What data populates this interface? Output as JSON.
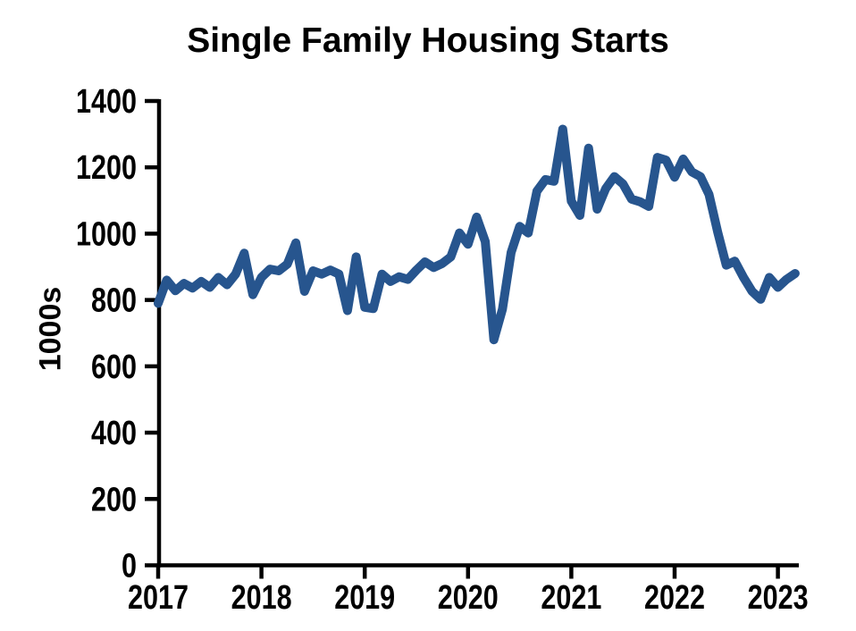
{
  "page": {
    "background": "#ffffff"
  },
  "chart_data": {
    "type": "line",
    "title": "Single Family Housing Starts",
    "ylabel": "1000s",
    "xlabel": "",
    "legend": "none",
    "grid": false,
    "background": "#ffffff",
    "axis_color": "#000000",
    "text_color": "#000000",
    "ylim": [
      0,
      1400
    ],
    "y_ticks": [
      0,
      200,
      400,
      600,
      800,
      1000,
      1200,
      1400
    ],
    "x_tick_labels": [
      "2017",
      "2018",
      "2019",
      "2020",
      "2021",
      "2022",
      "2023"
    ],
    "frequency": "monthly",
    "x_start": "2017-01",
    "x_end": "2023-03",
    "series": [
      {
        "color": "#27558E",
        "values": [
          790,
          860,
          828,
          850,
          836,
          856,
          838,
          868,
          846,
          878,
          941,
          816,
          868,
          893,
          888,
          908,
          972,
          826,
          888,
          878,
          890,
          878,
          768,
          930,
          778,
          774,
          878,
          856,
          870,
          862,
          890,
          915,
          898,
          910,
          930,
          1002,
          968,
          1050,
          976,
          680,
          772,
          943,
          1022,
          1002,
          1128,
          1163,
          1158,
          1315,
          1098,
          1055,
          1258,
          1074,
          1136,
          1172,
          1150,
          1104,
          1096,
          1082,
          1230,
          1222,
          1170,
          1225,
          1186,
          1172,
          1118,
          1005,
          905,
          917,
          868,
          826,
          802,
          868,
          838,
          862,
          880
        ]
      }
    ]
  }
}
